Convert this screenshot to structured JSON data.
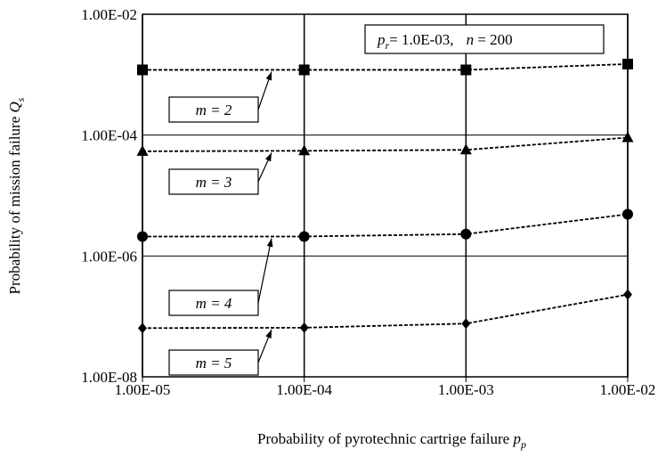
{
  "chart_data": {
    "type": "line",
    "title_parts": [
      "p",
      "r",
      "= 1.0E-03,",
      "n",
      " = 200"
    ],
    "xlabel_parts": [
      "Probability of pyrotechnic cartrige failure ",
      "p",
      "p"
    ],
    "ylabel_parts": [
      "Probability of mission failure ",
      "Q",
      "s"
    ],
    "x": [
      1e-05,
      0.0001,
      0.001,
      0.01
    ],
    "xlog": true,
    "ylog": true,
    "grid": true,
    "xlim": [
      1e-05,
      0.01
    ],
    "ylim": [
      1e-08,
      0.01
    ],
    "xticks": [
      {
        "value": 1e-05,
        "label": "1.00E-05"
      },
      {
        "value": 0.0001,
        "label": "1.00E-04"
      },
      {
        "value": 0.001,
        "label": "1.00E-03"
      },
      {
        "value": 0.01,
        "label": "1.00E-02"
      }
    ],
    "yticks": [
      {
        "value": 1e-08,
        "label": "1.00E-08"
      },
      {
        "value": 1e-06,
        "label": "1.00E-06"
      },
      {
        "value": 0.0001,
        "label": "1.00E-04"
      },
      {
        "value": 0.01,
        "label": "1.00E-02"
      }
    ],
    "series": [
      {
        "name": "m = 2",
        "color": "#000000",
        "marker": "square",
        "values": [
          0.0012,
          0.0012,
          0.0012,
          0.0015
        ]
      },
      {
        "name": "m = 3",
        "color": "#000000",
        "marker": "triangle",
        "values": [
          5.4e-05,
          5.5e-05,
          5.7e-05,
          9.1e-05
        ]
      },
      {
        "name": "m = 4",
        "color": "#000000",
        "marker": "circle",
        "values": [
          2.1e-06,
          2.1e-06,
          2.3e-06,
          4.9e-06
        ]
      },
      {
        "name": "m = 5",
        "color": "#000000",
        "marker": "diamond",
        "values": [
          6.4e-08,
          6.5e-08,
          7.6e-08,
          2.3e-07
        ]
      }
    ]
  }
}
